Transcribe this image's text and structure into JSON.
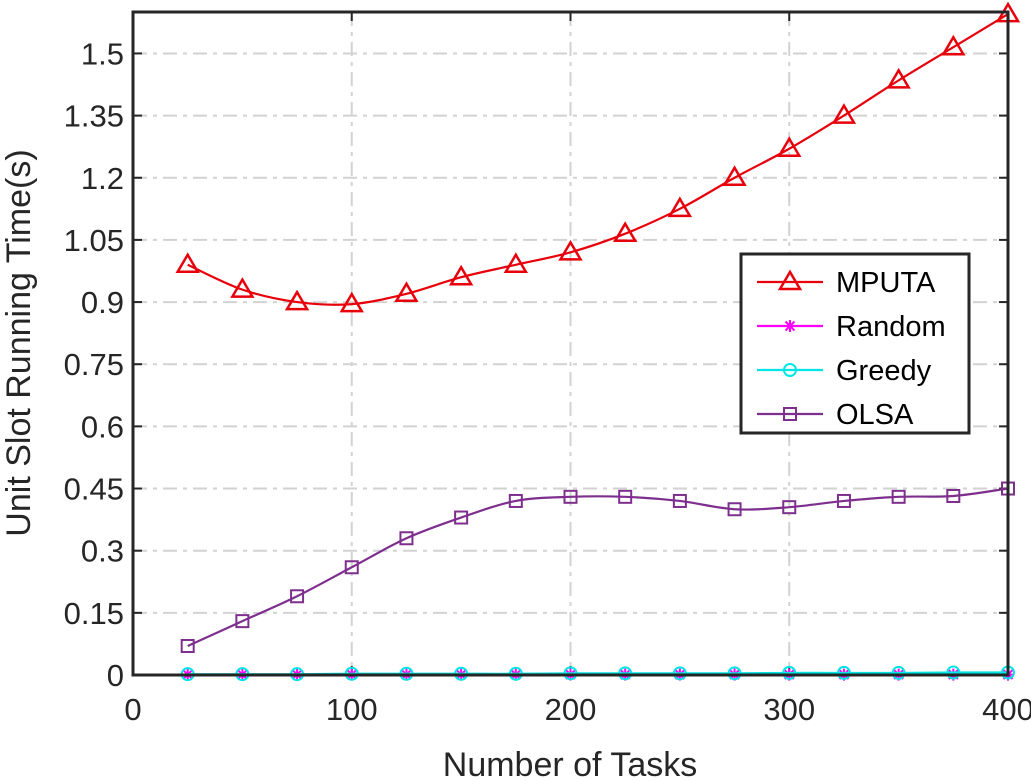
{
  "chart_data": {
    "type": "line",
    "xlabel": "Number of Tasks",
    "ylabel": "Unit Slot Running Time(s)",
    "xlim": [
      0,
      400
    ],
    "ylim": [
      0,
      1.6
    ],
    "xticks": [
      0,
      100,
      200,
      300,
      400
    ],
    "yticks": [
      0,
      0.15,
      0.3,
      0.45,
      0.6,
      0.75,
      0.9,
      1.05,
      1.2,
      1.35,
      1.5
    ],
    "xtick_labels": [
      "0",
      "100",
      "200",
      "300",
      "400"
    ],
    "ytick_labels": [
      "0",
      "0.15",
      "0.3",
      "0.45",
      "0.6",
      "0.75",
      "0.9",
      "1.05",
      "1.2",
      "1.35",
      "1.5"
    ],
    "grid": true,
    "legend_position": "right",
    "x": [
      25,
      50,
      75,
      100,
      125,
      150,
      175,
      200,
      225,
      250,
      275,
      300,
      325,
      350,
      375,
      400
    ],
    "series": [
      {
        "name": "MPUTA",
        "color": "#e8000b",
        "marker": "triangle",
        "values": [
          0.99,
          0.93,
          0.9,
          0.895,
          0.92,
          0.96,
          0.99,
          1.02,
          1.065,
          1.125,
          1.2,
          1.27,
          1.35,
          1.435,
          1.515,
          1.595
        ]
      },
      {
        "name": "Random",
        "color": "#ff00ff",
        "marker": "asterisk",
        "values": [
          0.001,
          0.001,
          0.001,
          0.001,
          0.001,
          0.001,
          0.001,
          0.001,
          0.001,
          0.001,
          0.001,
          0.001,
          0.001,
          0.001,
          0.001,
          0.001
        ]
      },
      {
        "name": "Greedy",
        "color": "#00e5e5",
        "marker": "circle",
        "values": [
          0.002,
          0.002,
          0.002,
          0.003,
          0.003,
          0.003,
          0.003,
          0.004,
          0.004,
          0.004,
          0.004,
          0.005,
          0.005,
          0.005,
          0.006,
          0.006
        ]
      },
      {
        "name": "OLSA",
        "color": "#7e2f8e",
        "marker": "square",
        "values": [
          0.07,
          0.13,
          0.19,
          0.26,
          0.33,
          0.38,
          0.42,
          0.43,
          0.43,
          0.42,
          0.4,
          0.405,
          0.42,
          0.43,
          0.432,
          0.45
        ]
      }
    ]
  }
}
